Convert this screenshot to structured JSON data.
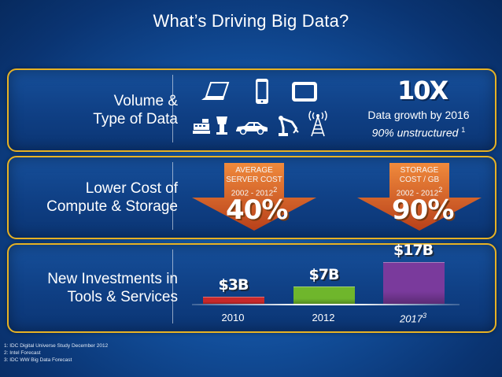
{
  "title": "What’s Driving Big Data?",
  "volume": {
    "label_line1": "Volume &",
    "label_line2": "Type of Data",
    "icons": [
      "laptop-icon",
      "smartphone-icon",
      "tablet-icon",
      "cash-register-icon",
      "kiosk-icon",
      "car-icon",
      "robot-arm-icon",
      "signal-tower-icon"
    ],
    "headline": "10X",
    "growth_line": "Data growth by 2016",
    "unstructured_line": "90% unstructured",
    "unstructured_sup": "1"
  },
  "cost": {
    "label_line1": "Lower Cost of",
    "label_line2": "Compute & Storage",
    "server": {
      "line1": "AVERAGE",
      "line2": "SERVER COST",
      "years": "2002 - 2012",
      "sup": "2",
      "value": "40%"
    },
    "storage": {
      "line1": "STORAGE",
      "line2": "COST / GB",
      "years": "2002 - 2012",
      "sup": "2",
      "value": "90%"
    },
    "arrow_color": "#d9581e"
  },
  "investments": {
    "label_line1": "New Investments in",
    "label_line2": "Tools & Services",
    "bars": [
      {
        "year": "2010",
        "value": 3,
        "label": "$3B",
        "color": "#c8282a"
      },
      {
        "year": "2012",
        "value": 7,
        "label": "$7B",
        "color": "#6fb62c"
      },
      {
        "year": "2017",
        "year_sup": "3",
        "value": 17,
        "label": "$17B",
        "color": "#7a3a9c"
      }
    ]
  },
  "footnotes": [
    "1: IDC Digital Universe Study December 2012",
    "2: Intel Forecast",
    "3: IDC WW Big Data Forecast"
  ]
}
